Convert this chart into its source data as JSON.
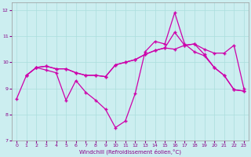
{
  "xlabel": "Windchill (Refroidissement éolien,°C)",
  "background_color": "#cceef0",
  "line_color": "#cc00aa",
  "grid_color": "#aadddd",
  "xlim": [
    -0.5,
    23.5
  ],
  "ylim": [
    7,
    12.3
  ],
  "yticks": [
    7,
    8,
    9,
    10,
    11,
    12
  ],
  "xticks": [
    0,
    1,
    2,
    3,
    4,
    5,
    6,
    7,
    8,
    9,
    10,
    11,
    12,
    13,
    14,
    15,
    16,
    17,
    18,
    19,
    20,
    21,
    22,
    23
  ],
  "s1_x": [
    0,
    1,
    2,
    3,
    4,
    5,
    6,
    7,
    8,
    9,
    10,
    11,
    12,
    13,
    14,
    15,
    16,
    17,
    18,
    19,
    20,
    21,
    22,
    23
  ],
  "s1_y": [
    8.6,
    9.5,
    9.8,
    9.7,
    9.6,
    8.55,
    9.3,
    8.85,
    8.55,
    8.2,
    7.5,
    7.75,
    8.8,
    10.4,
    10.8,
    10.7,
    11.9,
    10.7,
    10.4,
    10.25,
    9.8,
    9.5,
    8.95,
    8.9
  ],
  "s2_x": [
    1,
    2,
    3,
    4,
    5,
    6,
    7,
    8,
    9,
    10,
    11,
    12,
    13,
    14,
    15,
    16,
    17,
    18,
    19,
    20,
    21,
    22,
    23
  ],
  "s2_y": [
    9.5,
    9.8,
    9.85,
    9.75,
    9.75,
    9.6,
    9.5,
    9.5,
    9.45,
    9.9,
    10.0,
    10.1,
    10.3,
    10.45,
    10.55,
    10.5,
    10.65,
    10.7,
    10.5,
    10.35,
    10.35,
    10.65,
    9.0
  ],
  "s3_x": [
    1,
    2,
    3,
    4,
    5,
    6,
    7,
    8,
    9,
    10,
    11,
    12,
    13,
    14,
    15,
    16,
    17,
    18,
    19,
    20,
    21,
    22,
    23
  ],
  "s3_y": [
    9.5,
    9.8,
    9.85,
    9.75,
    9.75,
    9.6,
    9.5,
    9.5,
    9.45,
    9.9,
    10.0,
    10.1,
    10.3,
    10.45,
    10.55,
    11.15,
    10.65,
    10.7,
    10.3,
    9.8,
    9.5,
    8.95,
    8.9
  ]
}
